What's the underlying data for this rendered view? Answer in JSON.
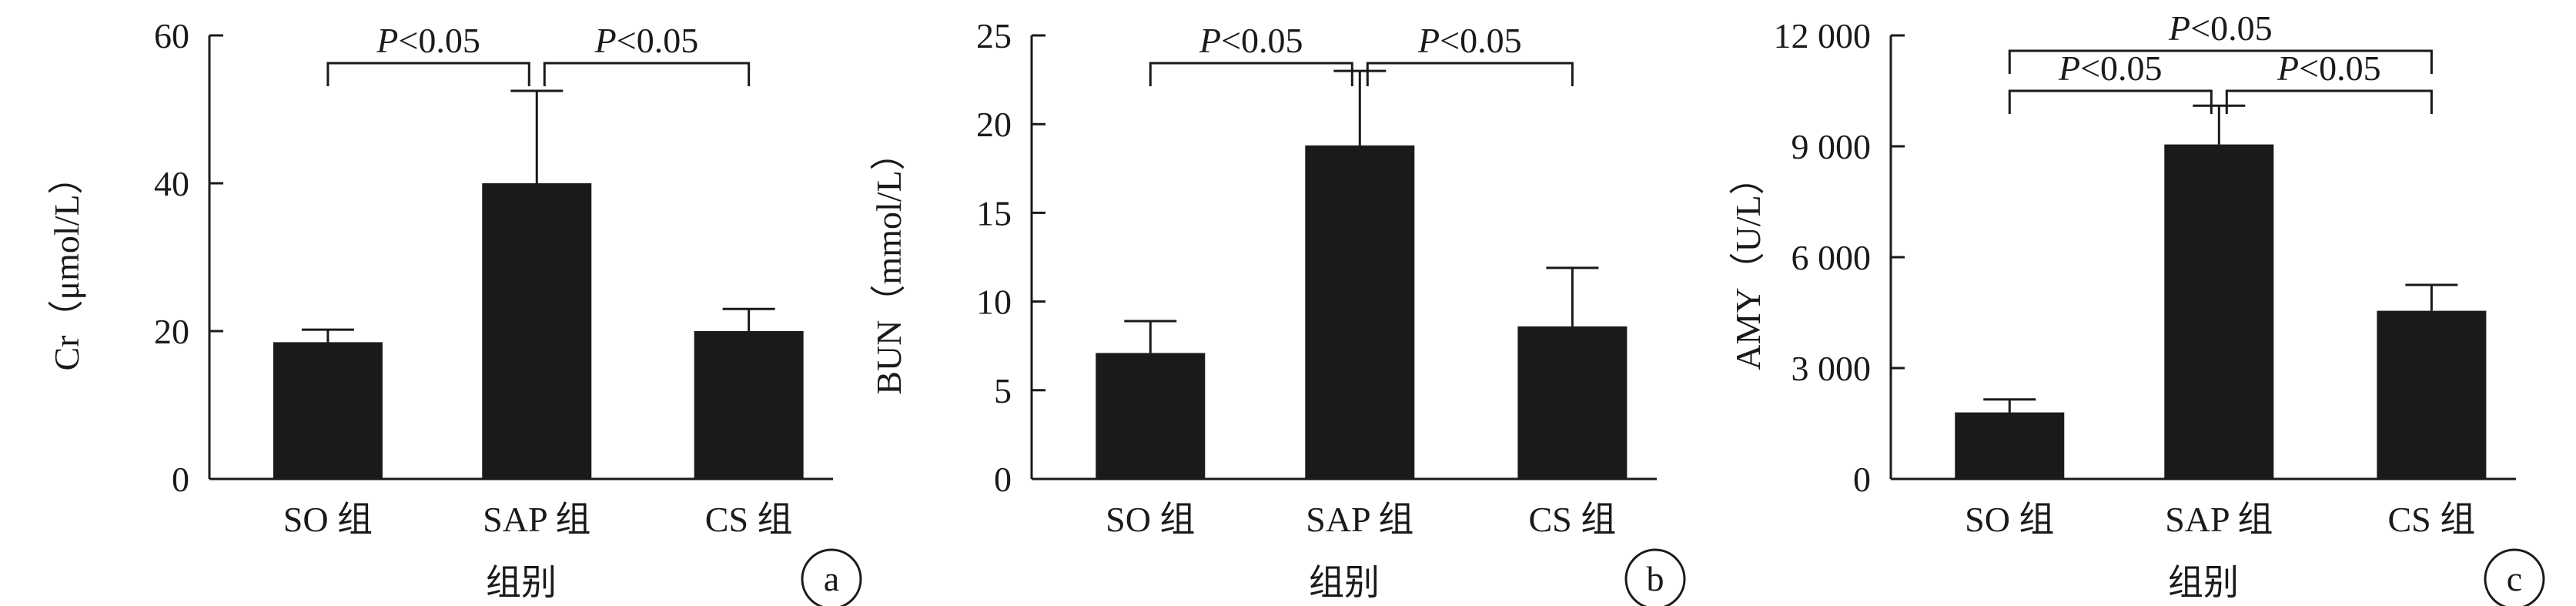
{
  "colors": {
    "bar": "#1a1a1a",
    "axis": "#1a1a1a",
    "background": "#ffffff"
  },
  "chart_data": [
    {
      "panel_label": "a",
      "type": "bar",
      "categories": [
        "SO 组",
        "SAP 组",
        "CS 组"
      ],
      "values": [
        18.5,
        40.0,
        20.0
      ],
      "error": [
        1.7,
        12.5,
        3.0
      ],
      "ylim": [
        0,
        60
      ],
      "yticks": [
        0,
        20,
        40,
        60
      ],
      "ytick_labels": [
        "0",
        "20",
        "40",
        "60"
      ],
      "ylabel": "Cr（μmol/L）",
      "xlabel": "组别",
      "title": "",
      "grid": false,
      "brackets": [
        {
          "from": 0,
          "to": 1,
          "label": "P<0.05",
          "level": 0
        },
        {
          "from": 1,
          "to": 2,
          "label": "P<0.05",
          "level": 0
        }
      ]
    },
    {
      "panel_label": "b",
      "type": "bar",
      "categories": [
        "SO 组",
        "SAP 组",
        "CS 组"
      ],
      "values": [
        7.1,
        18.8,
        8.6
      ],
      "error": [
        1.8,
        4.2,
        3.3
      ],
      "ylim": [
        0,
        25
      ],
      "yticks": [
        0,
        5,
        10,
        15,
        20,
        25
      ],
      "ytick_labels": [
        "0",
        "5",
        "10",
        "15",
        "20",
        "25"
      ],
      "ylabel": "BUN（mmol/L）",
      "xlabel": "组别",
      "title": "",
      "grid": false,
      "brackets": [
        {
          "from": 0,
          "to": 1,
          "label": "P<0.05",
          "level": 0
        },
        {
          "from": 1,
          "to": 2,
          "label": "P<0.05",
          "level": 0
        }
      ]
    },
    {
      "panel_label": "c",
      "type": "bar",
      "categories": [
        "SO 组",
        "SAP 组",
        "CS 组"
      ],
      "values": [
        1800,
        9050,
        4550
      ],
      "error": [
        350,
        1050,
        700
      ],
      "ylim": [
        0,
        12000
      ],
      "yticks": [
        0,
        3000,
        6000,
        9000,
        12000
      ],
      "ytick_labels": [
        "0",
        "3 000",
        "6 000",
        "9 000",
        "12 000"
      ],
      "ylabel": "AMY（U/L）",
      "xlabel": "组别",
      "title": "",
      "grid": false,
      "brackets": [
        {
          "from": 0,
          "to": 1,
          "label": "P<0.05",
          "level": 0
        },
        {
          "from": 1,
          "to": 2,
          "label": "P<0.05",
          "level": 0
        },
        {
          "from": 0,
          "to": 2,
          "label": "P<0.05",
          "level": 1
        }
      ]
    }
  ]
}
